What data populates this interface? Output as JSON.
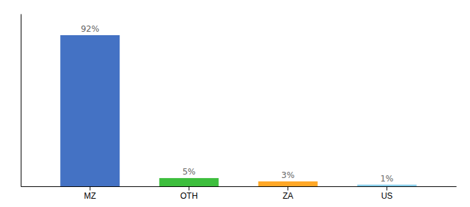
{
  "chart_data": {
    "type": "bar",
    "categories": [
      "MZ",
      "OTH",
      "ZA",
      "US"
    ],
    "values": [
      92,
      5,
      3,
      1
    ],
    "value_labels": [
      "92%",
      "5%",
      "3%",
      "1%"
    ],
    "colors": [
      "#4472C4",
      "#3DBE3D",
      "#FFA726",
      "#87CEEB"
    ],
    "ylim": [
      0,
      105
    ],
    "data_labels": true,
    "tick_labels": "x",
    "grid": false
  }
}
